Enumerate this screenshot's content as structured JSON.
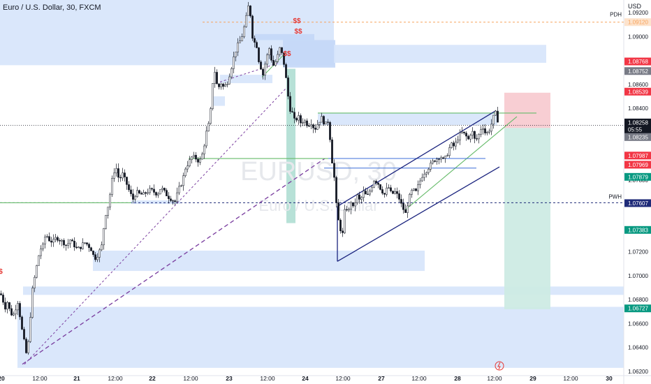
{
  "title": "Euro / U.S. Dollar, 30, FXCM",
  "currency": "USD",
  "watermark": {
    "symbol": "EURUSD, 30",
    "name": "Euro / U.S. Dollar"
  },
  "axis": {
    "y_ticks": [
      "1.09200",
      "1.09000",
      "1.08600",
      "1.08400",
      "1.08000",
      "1.07800",
      "1.07200",
      "1.07000",
      "1.06800",
      "1.06600",
      "1.06400",
      "1.06200"
    ],
    "x_ticks": [
      "20",
      "12:00",
      "21",
      "12:00",
      "22",
      "12:00",
      "23",
      "12:00",
      "24",
      "12:00",
      "27",
      "12:00",
      "28",
      "12:00",
      "29",
      "12:00",
      "30"
    ]
  },
  "price_labels": [
    {
      "text": "1.09120",
      "color": "#f7a35c",
      "bg": "#fde3cc"
    },
    {
      "text": "1.08768",
      "color": "#ffffff",
      "bg": "#f23645"
    },
    {
      "text": "1.08752",
      "color": "#ffffff",
      "bg": "#787b86"
    },
    {
      "text": "1.08539",
      "color": "#ffffff",
      "bg": "#f23645"
    },
    {
      "text": "1.08258",
      "color": "#ffffff",
      "bg": "#131722"
    },
    {
      "text": "05:55",
      "color": "#ffffff",
      "bg": "#131722"
    },
    {
      "text": "1.08235",
      "color": "#ffffff",
      "bg": "#787b86"
    },
    {
      "text": "1.07987",
      "color": "#ffffff",
      "bg": "#f23645"
    },
    {
      "text": "1.07969",
      "color": "#ffffff",
      "bg": "#f23645"
    },
    {
      "text": "1.07879",
      "color": "#ffffff",
      "bg": "#089981"
    },
    {
      "text": "1.07607",
      "color": "#ffffff",
      "bg": "#1e2a78"
    },
    {
      "text": "1.07383",
      "color": "#ffffff",
      "bg": "#089981"
    },
    {
      "text": "1.06727",
      "color": "#ffffff",
      "bg": "#089981"
    }
  ],
  "line_labels": [
    "PDH",
    "PWH"
  ],
  "markers": [
    "$$",
    "$$",
    "$$",
    "$"
  ],
  "colors": {
    "up": "#131722",
    "down": "#131722",
    "zone": "#d6e4fb",
    "green": "#66bb6a",
    "purple": "#7b3fa0",
    "channel": "#1a237e"
  },
  "chart_data": {
    "type": "candlestick",
    "title": "Euro / U.S. Dollar, 30, FXCM",
    "ylim": [
      1.0618,
      1.0935
    ],
    "y_ticks": [
      1.092,
      1.09,
      1.086,
      1.084,
      1.08,
      1.078,
      1.072,
      1.07,
      1.068,
      1.066,
      1.064,
      1.062
    ],
    "x_labels": [
      "20",
      "12:00",
      "21",
      "12:00",
      "22",
      "12:00",
      "23",
      "12:00",
      "24",
      "12:00",
      "27",
      "12:00",
      "28",
      "12:00",
      "29",
      "12:00",
      "30"
    ],
    "path": [
      [
        0,
        1.0685
      ],
      [
        3,
        1.0682
      ],
      [
        6,
        1.0672
      ],
      [
        10,
        1.0678
      ],
      [
        14,
        1.067
      ],
      [
        18,
        1.0666
      ],
      [
        22,
        1.0673
      ],
      [
        26,
        1.068
      ],
      [
        29,
        1.066
      ],
      [
        32,
        1.0652
      ],
      [
        35,
        1.0642
      ],
      [
        38,
        1.0632
      ],
      [
        41,
        1.065
      ],
      [
        44,
        1.0675
      ],
      [
        47,
        1.0695
      ],
      [
        50,
        1.07
      ],
      [
        53,
        1.0712
      ],
      [
        57,
        1.0722
      ],
      [
        61,
        1.0725
      ],
      [
        65,
        1.0735
      ],
      [
        70,
        1.073
      ],
      [
        75,
        1.0728
      ],
      [
        80,
        1.0732
      ],
      [
        85,
        1.073
      ],
      [
        90,
        1.0728
      ],
      [
        95,
        1.0725
      ],
      [
        100,
        1.073
      ],
      [
        105,
        1.0726
      ],
      [
        110,
        1.0722
      ],
      [
        115,
        1.0724
      ],
      [
        120,
        1.0728
      ],
      [
        125,
        1.0726
      ],
      [
        130,
        1.0722
      ],
      [
        135,
        1.0714
      ],
      [
        140,
        1.0718
      ],
      [
        145,
        1.0725
      ],
      [
        150,
        1.075
      ],
      [
        155,
        1.076
      ],
      [
        160,
        1.078
      ],
      [
        165,
        1.0792
      ],
      [
        170,
        1.078
      ],
      [
        175,
        1.0785
      ],
      [
        180,
        1.0778
      ],
      [
        185,
        1.077
      ],
      [
        190,
        1.0764
      ],
      [
        195,
        1.077
      ],
      [
        200,
        1.0768
      ],
      [
        205,
        1.0768
      ],
      [
        210,
        1.077
      ],
      [
        215,
        1.0772
      ],
      [
        220,
        1.077
      ],
      [
        225,
        1.0768
      ],
      [
        230,
        1.0774
      ],
      [
        235,
        1.077
      ],
      [
        240,
        1.0766
      ],
      [
        245,
        1.0764
      ],
      [
        250,
        1.0762
      ],
      [
        255,
        1.0772
      ],
      [
        260,
        1.0778
      ],
      [
        265,
        1.079
      ],
      [
        270,
        1.0795
      ],
      [
        275,
        1.08
      ],
      [
        280,
        1.0798
      ],
      [
        285,
        1.0795
      ],
      [
        290,
        1.0803
      ],
      [
        295,
        1.082
      ],
      [
        300,
        1.083
      ],
      [
        303,
        1.0855
      ],
      [
        306,
        1.0875
      ],
      [
        309,
        1.0862
      ],
      [
        312,
        1.0856
      ],
      [
        315,
        1.0862
      ],
      [
        320,
        1.0857
      ],
      [
        325,
        1.0862
      ],
      [
        330,
        1.0872
      ],
      [
        335,
        1.0885
      ],
      [
        340,
        1.0893
      ],
      [
        345,
        1.0898
      ],
      [
        350,
        1.091
      ],
      [
        355,
        1.0925
      ],
      [
        358,
        1.0918
      ],
      [
        361,
        1.09
      ],
      [
        364,
        1.0895
      ],
      [
        367,
        1.0892
      ],
      [
        370,
        1.088
      ],
      [
        373,
        1.0874
      ],
      [
        376,
        1.0868
      ],
      [
        380,
        1.088
      ],
      [
        385,
        1.089
      ],
      [
        390,
        1.0875
      ],
      [
        395,
        1.088
      ],
      [
        400,
        1.089
      ],
      [
        404,
        1.0884
      ],
      [
        407,
        1.0874
      ],
      [
        410,
        1.086
      ],
      [
        414,
        1.084
      ],
      [
        418,
        1.0836
      ],
      [
        422,
        1.0828
      ],
      [
        426,
        1.0834
      ],
      [
        430,
        1.0828
      ],
      [
        435,
        1.083
      ],
      [
        440,
        1.0826
      ],
      [
        445,
        1.0828
      ],
      [
        450,
        1.0822
      ],
      [
        455,
        1.0828
      ],
      [
        460,
        1.0832
      ],
      [
        465,
        1.0826
      ],
      [
        470,
        1.083
      ],
      [
        474,
        1.08
      ],
      [
        478,
        1.0782
      ],
      [
        482,
        1.0752
      ],
      [
        486,
        1.074
      ],
      [
        490,
        1.0735
      ],
      [
        494,
        1.076
      ],
      [
        498,
        1.0752
      ],
      [
        502,
        1.0762
      ],
      [
        506,
        1.0755
      ],
      [
        510,
        1.0768
      ],
      [
        515,
        1.0762
      ],
      [
        520,
        1.077
      ],
      [
        525,
        1.0766
      ],
      [
        530,
        1.0772
      ],
      [
        535,
        1.078
      ],
      [
        540,
        1.0778
      ],
      [
        545,
        1.0772
      ],
      [
        550,
        1.0768
      ],
      [
        555,
        1.0775
      ],
      [
        560,
        1.0768
      ],
      [
        565,
        1.077
      ],
      [
        570,
        1.0766
      ],
      [
        575,
        1.0758
      ],
      [
        580,
        1.0752
      ],
      [
        585,
        1.0765
      ],
      [
        590,
        1.0772
      ],
      [
        595,
        1.077
      ],
      [
        600,
        1.0778
      ],
      [
        605,
        1.0785
      ],
      [
        610,
        1.0788
      ],
      [
        615,
        1.0792
      ],
      [
        620,
        1.0796
      ],
      [
        625,
        1.0798
      ],
      [
        630,
        1.08
      ],
      [
        635,
        1.0796
      ],
      [
        640,
        1.0802
      ],
      [
        645,
        1.081
      ],
      [
        650,
        1.0808
      ],
      [
        655,
        1.0815
      ],
      [
        660,
        1.082
      ],
      [
        665,
        1.0818
      ],
      [
        670,
        1.0814
      ],
      [
        675,
        1.0822
      ],
      [
        680,
        1.0812
      ],
      [
        685,
        1.0818
      ],
      [
        690,
        1.0826
      ],
      [
        695,
        1.0818
      ],
      [
        700,
        1.0822
      ],
      [
        705,
        1.083
      ],
      [
        708,
        1.0838
      ],
      [
        711,
        1.0832
      ],
      [
        714,
        1.0826
      ]
    ],
    "zones": [
      {
        "x": [
          0,
          478
        ],
        "y": [
          1.0876,
          1.0935
        ],
        "color": "#d6e4fb"
      },
      {
        "x": [
          365,
          450
        ],
        "y": [
          1.0897,
          1.0902
        ],
        "color": "#c3d7f7"
      },
      {
        "x": [
          405,
          480
        ],
        "y": [
          1.0874,
          1.0897
        ],
        "color": "#c3d7f7"
      },
      {
        "x": [
          478,
          782
        ],
        "y": [
          1.0878,
          1.0893
        ],
        "color": "#d6e4fb"
      },
      {
        "x": [
          315,
          390
        ],
        "y": [
          1.0861,
          1.0868
        ],
        "color": "#d6e4fb"
      },
      {
        "x": [
          305,
          322
        ],
        "y": [
          1.0842,
          1.085
        ],
        "color": "#d6e4fb"
      },
      {
        "x": [
          455,
          712
        ],
        "y": [
          1.0826,
          1.0836
        ],
        "color": "#d6e4fb"
      },
      {
        "x": [
          188,
          258
        ],
        "y": [
          1.076,
          1.0763
        ],
        "color": "#d6e4fb"
      },
      {
        "x": [
          133,
          608
        ],
        "y": [
          1.0704,
          1.0721
        ],
        "color": "#d6e4fb"
      },
      {
        "x": [
          33,
          893
        ],
        "y": [
          1.0684,
          1.0691
        ],
        "color": "#d6e4fb"
      },
      {
        "x": [
          25,
          893
        ],
        "y": [
          1.0623,
          1.0674
        ],
        "color": "#d6e4fb"
      }
    ],
    "signal_zone": {
      "x": [
        410,
        423
      ],
      "y": [
        1.0744,
        1.0873
      ],
      "color": "#b7e1d7"
    },
    "position": {
      "x": [
        722,
        788
      ],
      "entry": 1.08235,
      "stop": 1.0853,
      "target": 1.0672
    },
    "levels": [
      {
        "label": "PDH",
        "value": 1.0912,
        "color": "#f7a35c",
        "style": "dashed",
        "x": [
          290,
          900
        ]
      },
      {
        "label": "PWH",
        "value": 1.0761,
        "color": "#1e2a78",
        "style": "dashed",
        "x": [
          0,
          900
        ]
      }
    ],
    "channel": {
      "upper": [
        [
          483,
          1.0758
        ],
        [
          710,
          1.0838
        ]
      ],
      "lower": [
        [
          483,
          1.0712
        ],
        [
          715,
          1.0791
        ]
      ]
    },
    "green_lines": [
      [
        [
          0,
          1.0761
        ],
        [
          188,
          1.0761
        ]
      ],
      [
        [
          270,
          1.0798
        ],
        [
          470,
          1.0798
        ]
      ],
      [
        [
          455,
          1.0836
        ],
        [
          768,
          1.0836
        ]
      ],
      [
        [
          580,
          1.0755
        ],
        [
          740,
          1.0833
        ]
      ],
      [
        [
          375,
          1.0866
        ],
        [
          410,
          1.0887
        ]
      ]
    ],
    "blue_lines": [
      [
        [
          470,
          1.0798
        ],
        [
          695,
          1.0798
        ]
      ],
      [
        [
          464,
          1.079
        ],
        [
          682,
          1.079
        ]
      ]
    ],
    "purple_lines": [
      [
        [
          32,
          1.0626
        ],
        [
          465,
          1.0798
        ]
      ],
      [
        [
          35,
          1.0626
        ],
        [
          410,
          1.0857
        ]
      ],
      [
        [
          315,
          1.0862
        ],
        [
          400,
          1.0878
        ]
      ]
    ]
  }
}
